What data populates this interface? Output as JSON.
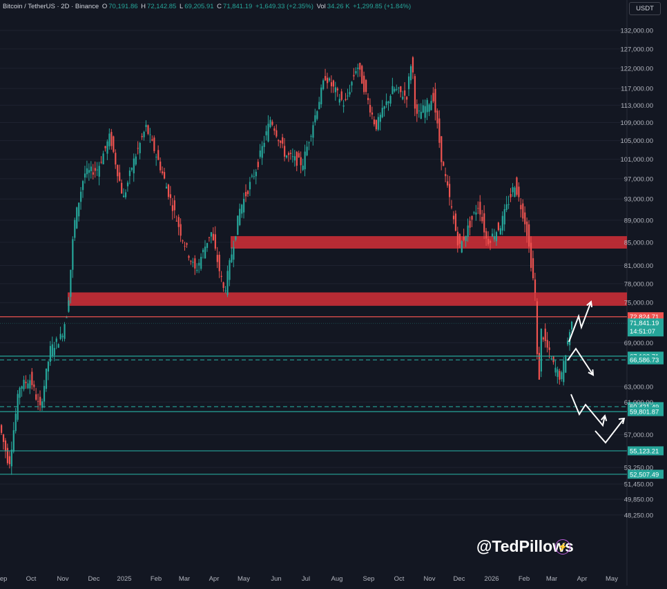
{
  "header": {
    "symbol": "Bitcoin / TetherUS · 2D · Binance",
    "o_label": "O",
    "o_value": "70,191.86",
    "h_label": "H",
    "h_value": "72,142.85",
    "l_label": "L",
    "l_value": "69,205.91",
    "c_label": "C",
    "c_value": "71,841.19",
    "change": "+1,649.33 (+2.35%)",
    "vol_label": "Vol",
    "vol_value": "34.26 K",
    "vol_change": "+1,299.85 (+1.84%)"
  },
  "currency_button": "USDT",
  "watermark": "@TedPillows",
  "watermark_icon": "lightning-icon",
  "colors": {
    "bg": "#131722",
    "up": "#26a69a",
    "down": "#ef5350",
    "zone": "#c62e36",
    "line_green": "#26a69a",
    "line_red": "#ef5350",
    "arrow": "#ffffff"
  },
  "chart_data": {
    "type": "candlestick",
    "title": "Bitcoin / TetherUS · 2D · Binance",
    "y_axis_ticks": [
      "132,000.00",
      "127,000.00",
      "122,000.00",
      "117,000.00",
      "113,000.00",
      "109,000.00",
      "105,000.00",
      "101,000.00",
      "97,000.00",
      "93,000.00",
      "89,000.00",
      "85,000.00",
      "81,000.00",
      "78,000.00",
      "75,000.00",
      "69,000.00",
      "63,000.00",
      "61,000.00",
      "57,000.00",
      "53,250.00",
      "51,450.00",
      "49,850.00",
      "48,250.00"
    ],
    "y_scale": "log",
    "ylim": [
      46600,
      142000
    ],
    "x_axis_ticks": [
      "Sep",
      "Oct",
      "Nov",
      "Dec",
      "2025",
      "Feb",
      "Mar",
      "Apr",
      "May",
      "Jun",
      "Jul",
      "Aug",
      "Sep",
      "Oct",
      "Nov",
      "Dec",
      "2026",
      "Feb",
      "Mar",
      "Apr",
      "May"
    ],
    "price_path": [
      [
        "2024-09-01",
        58000
      ],
      [
        "2024-09-10",
        53500
      ],
      [
        "2024-09-20",
        63000
      ],
      [
        "2024-10-01",
        64000
      ],
      [
        "2024-10-10",
        60000
      ],
      [
        "2024-10-20",
        68000
      ],
      [
        "2024-10-31",
        70000
      ],
      [
        "2024-11-06",
        74000
      ],
      [
        "2024-11-12",
        88000
      ],
      [
        "2024-11-22",
        98000
      ],
      [
        "2024-12-05",
        99000
      ],
      [
        "2024-12-17",
        106000
      ],
      [
        "2024-12-30",
        93000
      ],
      [
        "2025-01-08",
        100000
      ],
      [
        "2025-01-21",
        108000
      ],
      [
        "2025-02-03",
        100000
      ],
      [
        "2025-02-25",
        86000
      ],
      [
        "2025-03-10",
        80000
      ],
      [
        "2025-03-25",
        87000
      ],
      [
        "2025-04-07",
        76500
      ],
      [
        "2025-04-22",
        91000
      ],
      [
        "2025-05-08",
        99000
      ],
      [
        "2025-05-22",
        110000
      ],
      [
        "2025-06-05",
        102000
      ],
      [
        "2025-06-22",
        100000
      ],
      [
        "2025-07-14",
        120000
      ],
      [
        "2025-08-02",
        113000
      ],
      [
        "2025-08-14",
        123000
      ],
      [
        "2025-09-01",
        108000
      ],
      [
        "2025-09-18",
        117000
      ],
      [
        "2025-10-01",
        115000
      ],
      [
        "2025-10-06",
        125000
      ],
      [
        "2025-10-10",
        110000
      ],
      [
        "2025-10-27",
        115000
      ],
      [
        "2025-11-04",
        101000
      ],
      [
        "2025-11-21",
        84000
      ],
      [
        "2025-12-10",
        92000
      ],
      [
        "2025-12-18",
        85000
      ],
      [
        "2025-12-31",
        88000
      ],
      [
        "2026-01-14",
        96000
      ],
      [
        "2026-01-25",
        88000
      ],
      [
        "2026-02-03",
        76000
      ],
      [
        "2026-02-06",
        61000
      ],
      [
        "2026-02-08",
        71000
      ],
      [
        "2026-02-20",
        66000
      ],
      [
        "2026-02-28",
        64000
      ],
      [
        "2026-03-06",
        69000
      ],
      [
        "2026-03-10",
        71841
      ]
    ],
    "zones": [
      {
        "from": 83900,
        "to": 86100
      },
      {
        "from": 74500,
        "to": 76600
      }
    ],
    "lines": [
      {
        "price": 72824.71,
        "label": "72,824.71",
        "color": "red",
        "style": "solid"
      },
      {
        "price": 67103.71,
        "label": "67,103.71",
        "color": "green",
        "style": "solid"
      },
      {
        "price": 66586.73,
        "label": "66,586.73",
        "color": "green",
        "style": "dashed"
      },
      {
        "price": 60421.49,
        "label": "60,421.49",
        "color": "green",
        "style": "dashed"
      },
      {
        "price": 59801.87,
        "label": "59,801.87",
        "color": "green",
        "style": "solid"
      },
      {
        "price": 55123.21,
        "label": "55,123.21",
        "color": "green",
        "style": "solid"
      },
      {
        "price": 52507.49,
        "label": "52,507.49",
        "color": "green",
        "style": "solid"
      }
    ],
    "current_price": {
      "value": 71841.19,
      "label": "71,841.19",
      "countdown": "14:51:07"
    }
  }
}
